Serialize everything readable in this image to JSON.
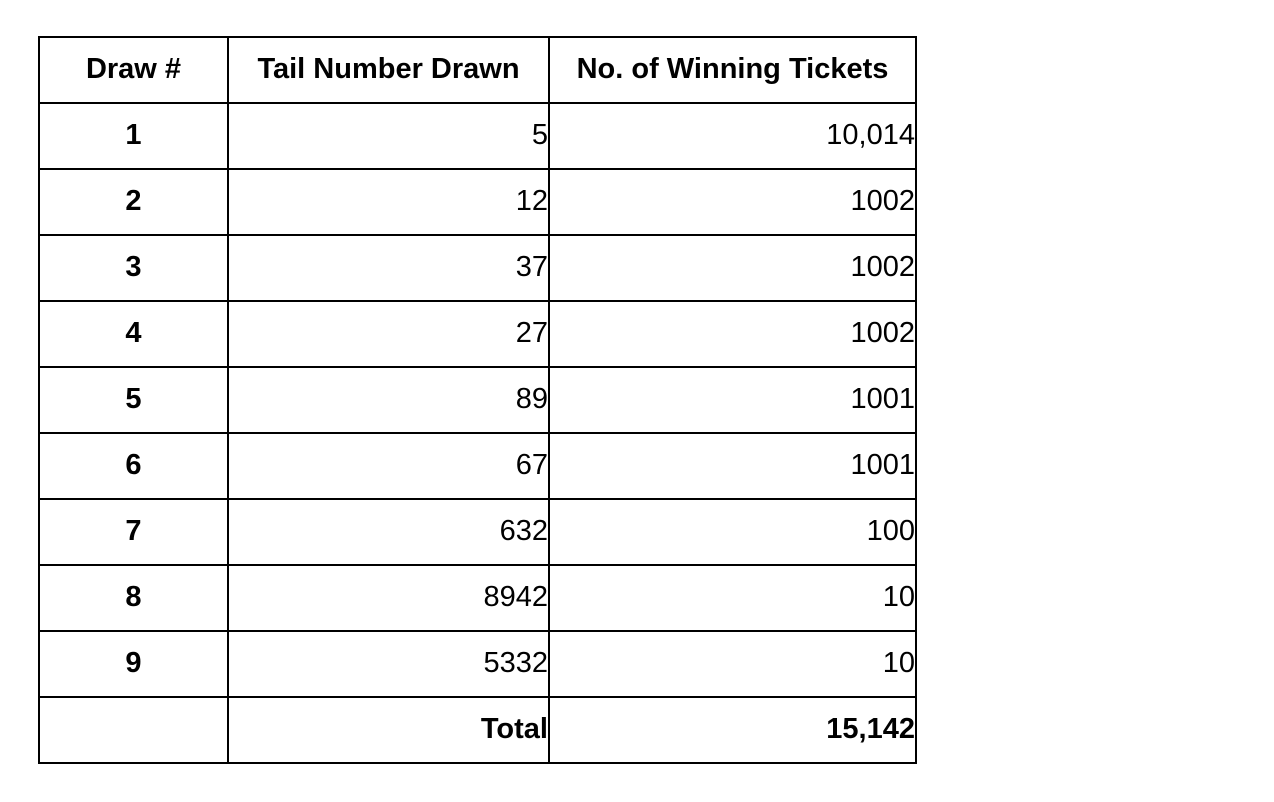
{
  "page": {
    "background_color": "#ffffff",
    "text_color": "#000000",
    "table_border_color": "#000000"
  },
  "table": {
    "columns": [
      {
        "label": "Draw #"
      },
      {
        "label": "Tail Number Drawn"
      },
      {
        "label": "No. of Winning Tickets"
      }
    ],
    "rows": [
      {
        "draw": "1",
        "tail": "5",
        "tickets": "10,014"
      },
      {
        "draw": "2",
        "tail": "12",
        "tickets": "1002"
      },
      {
        "draw": "3",
        "tail": "37",
        "tickets": "1002"
      },
      {
        "draw": "4",
        "tail": "27",
        "tickets": "1002"
      },
      {
        "draw": "5",
        "tail": "89",
        "tickets": "1001"
      },
      {
        "draw": "6",
        "tail": "67",
        "tickets": "1001"
      },
      {
        "draw": "7",
        "tail": "632",
        "tickets": "100"
      },
      {
        "draw": "8",
        "tail": "8942",
        "tickets": "10"
      },
      {
        "draw": "9",
        "tail": "5332",
        "tickets": "10"
      }
    ],
    "total_row": {
      "label": "Total",
      "value": "15,142"
    }
  },
  "chart_data": {
    "type": "table",
    "columns": [
      "Draw #",
      "Tail Number Drawn",
      "No. of Winning Tickets"
    ],
    "rows": [
      [
        "1",
        5,
        10014
      ],
      [
        "2",
        12,
        1002
      ],
      [
        "3",
        37,
        1002
      ],
      [
        "4",
        27,
        1002
      ],
      [
        "5",
        89,
        1001
      ],
      [
        "6",
        67,
        1001
      ],
      [
        "7",
        632,
        100
      ],
      [
        "8",
        8942,
        10
      ],
      [
        "9",
        5332,
        10
      ],
      [
        "",
        "Total",
        15142
      ]
    ],
    "notes": "Winning tickets displayed as 10,014 and 15,142 with thousands separators; 1002/1001 shown without separators"
  }
}
